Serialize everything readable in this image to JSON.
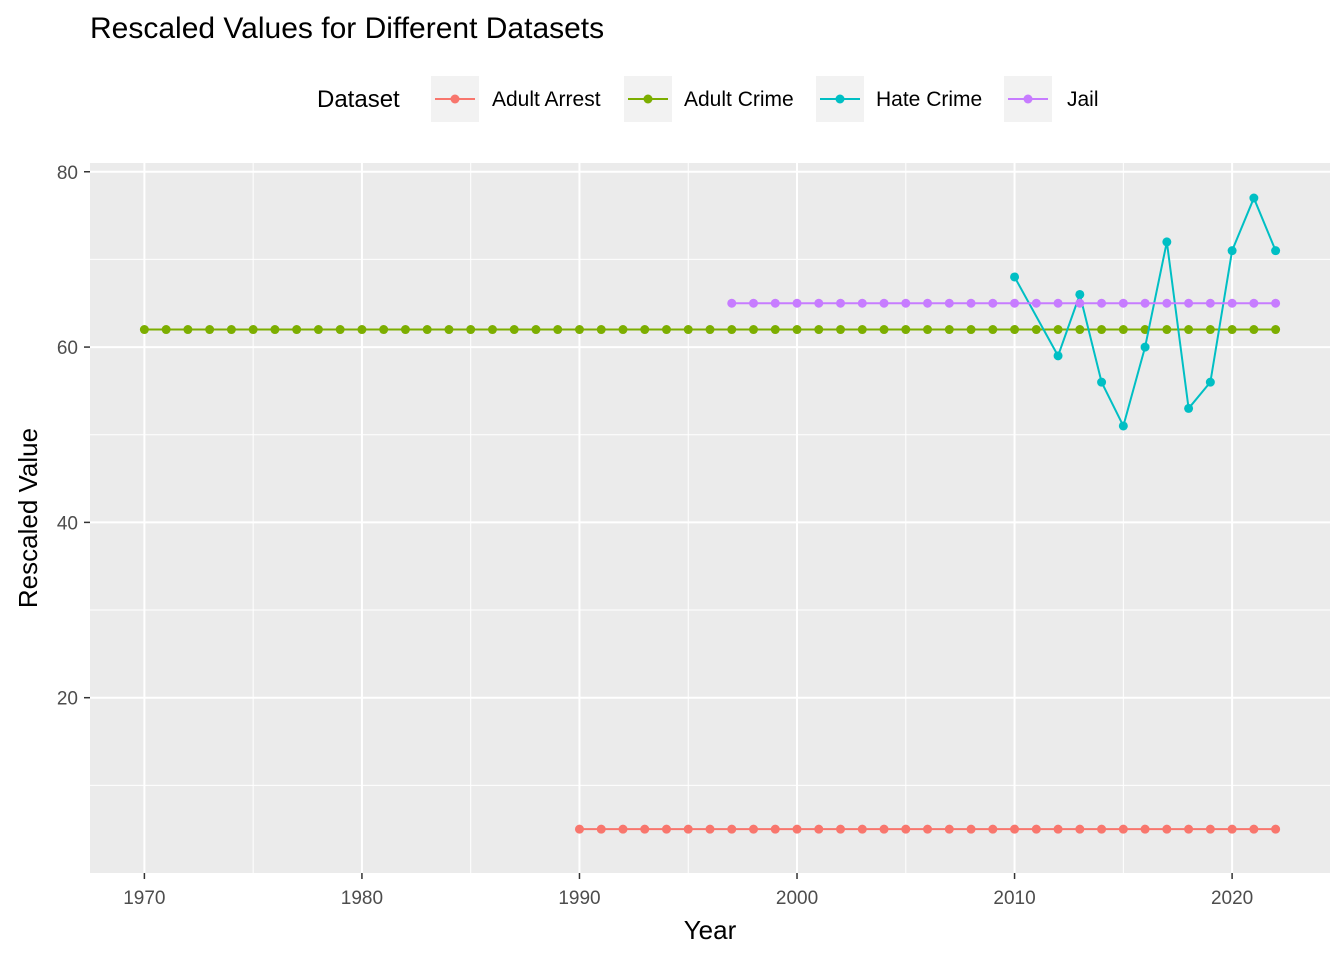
{
  "chart_data": {
    "type": "line",
    "title": "Rescaled Values for Different Datasets",
    "xlabel": "Year",
    "ylabel": "Rescaled Value",
    "xlim": [
      1967.5,
      2024.5
    ],
    "ylim": [
      0,
      81
    ],
    "xticks": [
      1970,
      1980,
      1990,
      2000,
      2010,
      2020
    ],
    "yticks": [
      20,
      40,
      60,
      80
    ],
    "grid": true,
    "legend_title": "Dataset",
    "legend_position": "top",
    "series": [
      {
        "name": "Adult Arrest",
        "color": "#F8766D",
        "x_start": 1990,
        "x_end": 2022,
        "constant_value": 5
      },
      {
        "name": "Adult Crime",
        "color": "#7CAE00",
        "x_start": 1970,
        "x_end": 2022,
        "constant_value": 62
      },
      {
        "name": "Hate Crime",
        "color": "#00BFC4",
        "x": [
          2010,
          2012,
          2013,
          2014,
          2015,
          2016,
          2017,
          2018,
          2019,
          2020,
          2021,
          2022
        ],
        "y": [
          68,
          59,
          66,
          56,
          51,
          60,
          72,
          53,
          56,
          71,
          77,
          71
        ]
      },
      {
        "name": "Jail",
        "color": "#C77CFF",
        "x_start": 1997,
        "x_end": 2022,
        "constant_value": 65
      }
    ]
  }
}
